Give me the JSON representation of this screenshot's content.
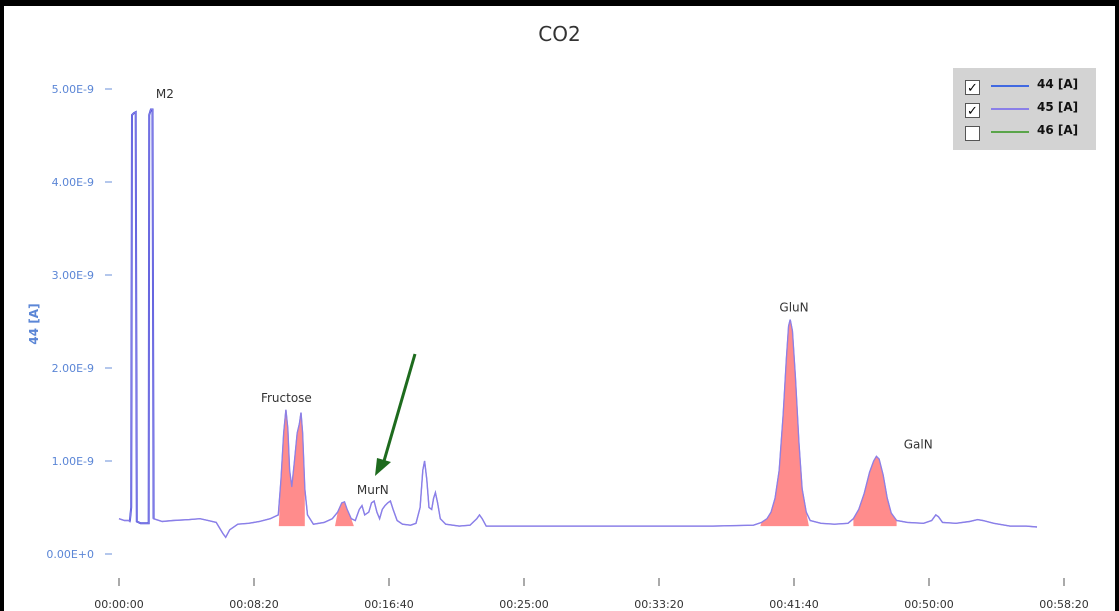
{
  "chart_data": {
    "type": "line",
    "title": "CO2",
    "ylabel": "44 [A]",
    "xlabel": "",
    "ylim": [
      0,
      5e-09
    ],
    "xlim_seconds": [
      0,
      3550
    ],
    "x_ticks": [
      "00:00:00",
      "00:08:20",
      "00:16:40",
      "00:25:00",
      "00:33:20",
      "00:41:40",
      "00:50:00",
      "00:58:20"
    ],
    "y_ticks": [
      "0.00E+0",
      "1.00E-9",
      "2.00E-9",
      "3.00E-9",
      "4.00E-9",
      "5.00E-9"
    ],
    "legend_position": "top-right",
    "series": [
      {
        "name": "44 [A]",
        "checked": true,
        "color": "#4169e1"
      },
      {
        "name": "45 [A]",
        "checked": true,
        "color": "#8a7fe8"
      },
      {
        "name": "46 [A]",
        "checked": false,
        "color": "#5aa54a"
      }
    ],
    "peaks": [
      {
        "label": "M2",
        "time": "00:01:20",
        "value": 4.78e-09
      },
      {
        "label": "Fructose",
        "time": "00:10:20",
        "value": 1.55e-09
      },
      {
        "label": "MurN",
        "time": "00:15:40",
        "value": 5.6e-10
      },
      {
        "label": "GluN",
        "time": "00:41:40",
        "value": 2.52e-09
      },
      {
        "label": "GalN",
        "time": "00:49:20",
        "value": 1.05e-09
      }
    ],
    "annotations": [
      {
        "type": "arrow",
        "points_to": "MurN",
        "color": "#1e6b1e"
      }
    ],
    "fill_color": "#ff7f7f",
    "line_color": "#8a7fe8"
  }
}
